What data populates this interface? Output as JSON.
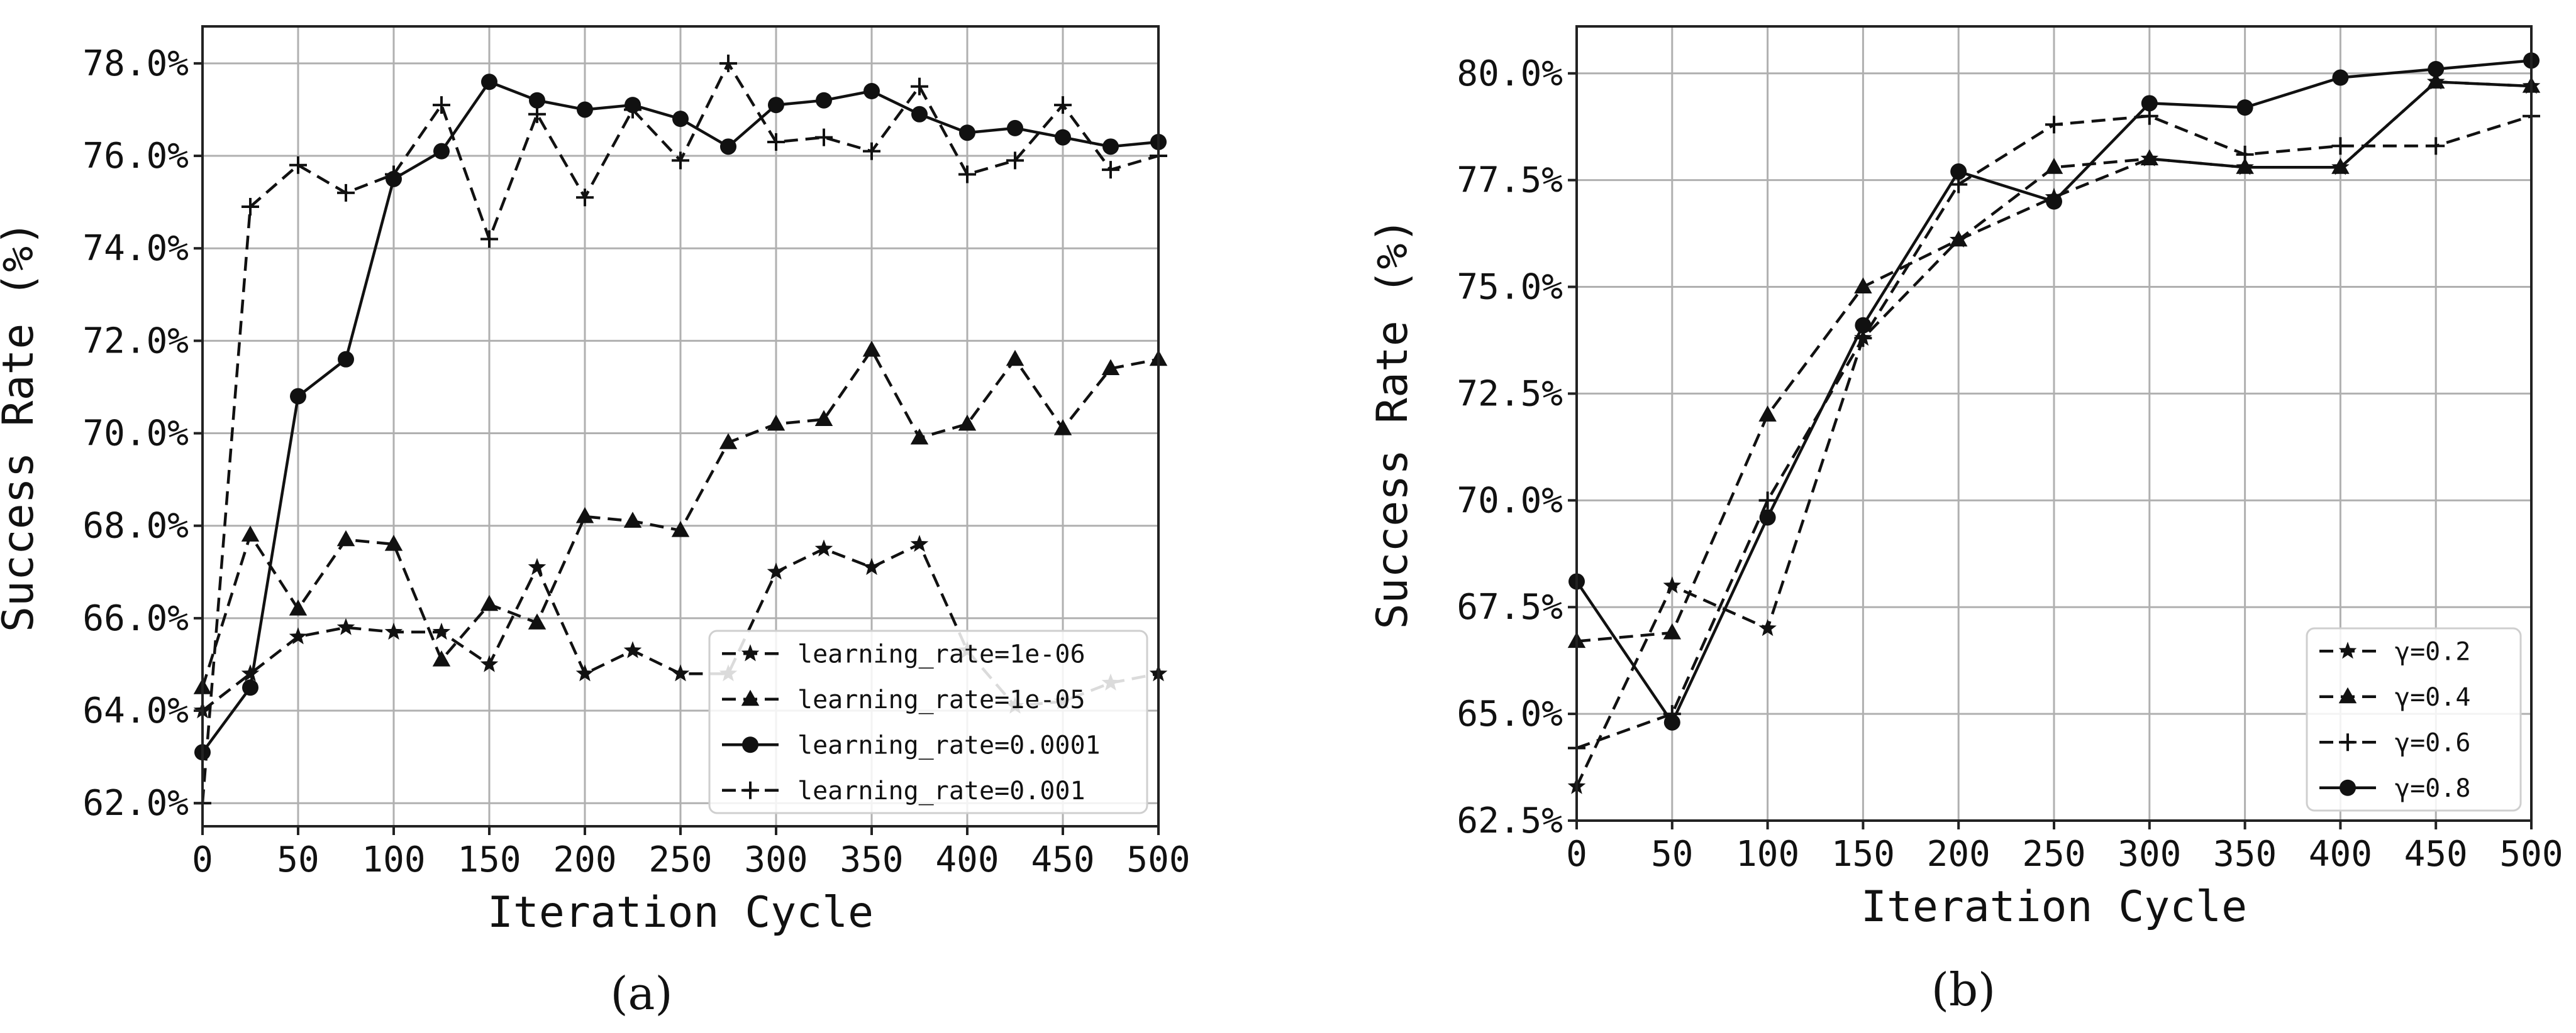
{
  "chart_data": [
    {
      "id": "a",
      "panel_label": "(a)",
      "type": "line",
      "xlabel": "Iteration Cycle",
      "ylabel": "Success Rate (%)",
      "xlim": [
        0,
        500
      ],
      "ylim": [
        61.5,
        78.8
      ],
      "x_ticks": [
        0,
        50,
        100,
        150,
        200,
        250,
        300,
        350,
        400,
        450,
        500
      ],
      "y_ticks": [
        62,
        64,
        66,
        68,
        70,
        72,
        74,
        76,
        78
      ],
      "y_tick_labels": [
        "62.0%",
        "64.0%",
        "66.0%",
        "68.0%",
        "70.0%",
        "72.0%",
        "74.0%",
        "76.0%",
        "78.0%"
      ],
      "grid": true,
      "legend_position": "bottom-right",
      "x": [
        0,
        25,
        50,
        75,
        100,
        125,
        150,
        175,
        200,
        225,
        250,
        275,
        300,
        325,
        350,
        375,
        400,
        425,
        450,
        475,
        500
      ],
      "series": [
        {
          "name": "learning_rate=1e-06",
          "marker": "star",
          "dash": "dashed",
          "values": [
            64.0,
            64.8,
            65.6,
            65.8,
            65.7,
            65.7,
            65.0,
            67.1,
            64.8,
            65.3,
            64.8,
            64.8,
            67.0,
            67.5,
            67.1,
            67.6,
            65.3,
            64.1,
            64.2,
            64.6,
            64.8
          ]
        },
        {
          "name": "learning_rate=1e-05",
          "marker": "triangle",
          "dash": "dashed",
          "values": [
            64.5,
            67.8,
            66.2,
            67.7,
            67.6,
            65.1,
            66.3,
            65.9,
            68.2,
            68.1,
            67.9,
            69.8,
            70.2,
            70.3,
            71.8,
            69.9,
            70.2,
            71.6,
            70.1,
            71.4,
            71.6
          ]
        },
        {
          "name": "learning_rate=0.0001",
          "marker": "circle",
          "dash": "solid",
          "values": [
            63.1,
            64.5,
            70.8,
            71.6,
            75.5,
            76.1,
            77.6,
            77.2,
            77.0,
            77.1,
            76.8,
            76.2,
            77.1,
            77.2,
            77.4,
            76.9,
            76.5,
            76.6,
            76.4,
            76.2,
            76.3
          ]
        },
        {
          "name": "learning_rate=0.001",
          "marker": "plus",
          "dash": "dashed",
          "values": [
            62.0,
            74.9,
            75.8,
            75.2,
            75.6,
            77.1,
            74.2,
            76.9,
            75.1,
            77.0,
            75.9,
            78.0,
            76.3,
            76.4,
            76.1,
            77.5,
            75.6,
            75.9,
            77.1,
            75.7,
            76.0
          ]
        }
      ]
    },
    {
      "id": "b",
      "panel_label": "(b)",
      "type": "line",
      "xlabel": "Iteration Cycle",
      "ylabel": "Success Rate (%)",
      "xlim": [
        0,
        500
      ],
      "ylim": [
        62.5,
        81.1
      ],
      "x_ticks": [
        0,
        50,
        100,
        150,
        200,
        250,
        300,
        350,
        400,
        450,
        500
      ],
      "y_ticks": [
        62.5,
        65.0,
        67.5,
        70.0,
        72.5,
        75.0,
        77.5,
        80.0
      ],
      "y_tick_labels": [
        "62.5%",
        "65.0%",
        "67.5%",
        "70.0%",
        "72.5%",
        "75.0%",
        "77.5%",
        "80.0%"
      ],
      "grid": true,
      "legend_position": "bottom-right",
      "x": [
        0,
        50,
        100,
        150,
        200,
        250,
        300,
        350,
        400,
        450,
        500
      ],
      "series": [
        {
          "name": "γ=0.2",
          "marker": "star",
          "dash": "dashed",
          "values": [
            63.3,
            68.0,
            67.0,
            73.8,
            76.1,
            77.1,
            78.0,
            77.8,
            77.8,
            79.8,
            79.7
          ]
        },
        {
          "name": "γ=0.4",
          "marker": "triangle",
          "dash": "dashed",
          "values": [
            66.7,
            66.9,
            72.0,
            75.0,
            76.1,
            77.8,
            78.0,
            77.8,
            77.8,
            79.8,
            79.7
          ]
        },
        {
          "name": "γ=0.6",
          "marker": "plus",
          "dash": "dashed",
          "values": [
            64.2,
            65.0,
            70.0,
            73.8,
            77.4,
            78.8,
            79.0,
            78.1,
            78.3,
            78.3,
            79.0
          ]
        },
        {
          "name": "γ=0.8",
          "marker": "circle",
          "dash": "solid",
          "values": [
            68.1,
            64.8,
            69.6,
            74.1,
            77.7,
            77.0,
            79.3,
            79.2,
            79.9,
            80.1,
            80.3
          ]
        }
      ]
    }
  ]
}
